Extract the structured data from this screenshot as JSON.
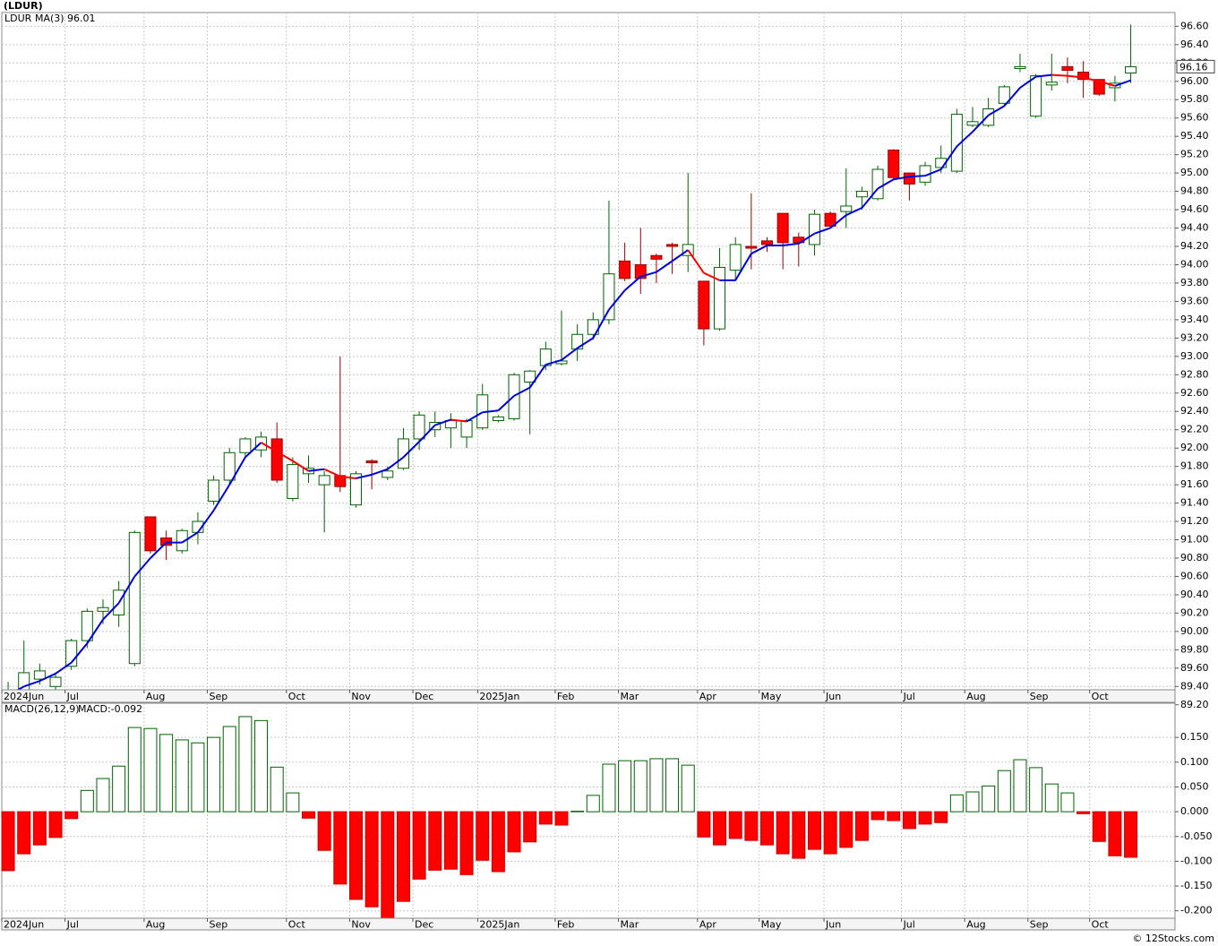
{
  "watermark": "© 12Stocks.com",
  "chart_data": [
    {
      "type": "candlestick",
      "title": "(LDUR)",
      "series": [
        {
          "name": "LDUR",
          "color": "#006400",
          "down_color": "#ff0000",
          "open": [
            89.2,
            89.25,
            89.48,
            89.4,
            89.62,
            89.9,
            90.22,
            90.18,
            89.65,
            91.25,
            91.02,
            90.88,
            91.08,
            91.42,
            91.65,
            91.95,
            91.98,
            92.1,
            91.45,
            91.72,
            91.6,
            91.7,
            91.38,
            91.86,
            91.68,
            91.78,
            92.1,
            92.2,
            92.22,
            92.12,
            92.22,
            92.3,
            92.32,
            92.72,
            92.9,
            92.92,
            93.08,
            93.24,
            93.4,
            94.04,
            94.0,
            94.1,
            94.22,
            94.1,
            93.82,
            93.3,
            93.94,
            94.2,
            94.26,
            94.56,
            94.3,
            94.22,
            94.56,
            94.58,
            94.74,
            94.72,
            95.25,
            95.0,
            94.9,
            95.06,
            95.02,
            95.52,
            95.52,
            95.76,
            96.14,
            95.62,
            95.96,
            96.16,
            96.1,
            96.02,
            95.93,
            96.09
          ],
          "high": [
            89.45,
            89.9,
            89.65,
            89.55,
            89.92,
            90.25,
            90.35,
            90.55,
            91.1,
            91.25,
            91.1,
            91.12,
            91.3,
            91.7,
            92.0,
            92.12,
            92.18,
            92.28,
            91.9,
            91.92,
            91.75,
            93.0,
            91.75,
            91.88,
            91.8,
            92.22,
            92.4,
            92.4,
            92.38,
            92.32,
            92.7,
            92.36,
            92.82,
            92.85,
            93.16,
            93.5,
            93.35,
            93.48,
            94.7,
            94.24,
            94.4,
            94.12,
            94.24,
            95.0,
            93.82,
            94.18,
            94.3,
            94.78,
            94.3,
            94.56,
            94.35,
            94.6,
            94.58,
            95.05,
            94.85,
            95.08,
            95.26,
            95.0,
            95.12,
            95.3,
            95.7,
            95.72,
            95.82,
            95.96,
            96.3,
            96.08,
            96.3,
            96.26,
            96.22,
            96.02,
            96.06,
            96.62
          ],
          "low": [
            89.15,
            89.22,
            89.42,
            89.3,
            89.58,
            89.82,
            90.08,
            90.05,
            89.62,
            90.85,
            90.78,
            90.85,
            90.95,
            91.38,
            91.6,
            91.9,
            91.9,
            91.62,
            91.42,
            91.62,
            91.08,
            91.52,
            91.35,
            91.55,
            91.65,
            91.76,
            91.98,
            92.12,
            92.0,
            92.0,
            92.2,
            92.28,
            92.3,
            92.15,
            92.85,
            92.9,
            92.95,
            93.18,
            93.35,
            93.82,
            93.68,
            93.8,
            93.9,
            93.92,
            93.12,
            93.28,
            93.82,
            93.95,
            94.14,
            93.95,
            93.98,
            94.1,
            94.4,
            94.4,
            94.6,
            94.7,
            94.92,
            94.7,
            94.86,
            95.0,
            95.0,
            95.5,
            95.5,
            95.74,
            96.1,
            95.6,
            95.9,
            95.98,
            95.82,
            95.84,
            95.78,
            95.98
          ],
          "close": [
            89.25,
            89.55,
            89.57,
            89.5,
            89.9,
            90.22,
            90.26,
            90.45,
            91.08,
            90.88,
            90.94,
            91.1,
            91.2,
            91.65,
            91.95,
            92.1,
            92.12,
            91.65,
            91.82,
            91.78,
            91.7,
            91.58,
            91.72,
            91.84,
            91.75,
            92.1,
            92.36,
            92.28,
            92.3,
            92.3,
            92.58,
            92.34,
            92.8,
            92.84,
            93.08,
            92.95,
            93.24,
            93.4,
            93.9,
            93.85,
            93.85,
            94.06,
            94.2,
            94.22,
            93.3,
            93.97,
            94.22,
            94.18,
            94.22,
            94.24,
            94.24,
            94.55,
            94.42,
            94.64,
            94.8,
            95.04,
            94.95,
            94.88,
            95.08,
            95.16,
            95.64,
            95.56,
            95.7,
            95.94,
            96.16,
            96.06,
            95.99,
            96.12,
            96.02,
            95.86,
            95.98,
            96.16
          ]
        },
        {
          "name": "MA(3)",
          "color": "#0000dd",
          "down_color": "#ff0000",
          "values": [
            89.3,
            89.4,
            89.46,
            89.54,
            89.66,
            89.87,
            90.13,
            90.31,
            90.6,
            90.8,
            90.97,
            90.97,
            91.08,
            91.32,
            91.6,
            91.9,
            92.06,
            91.96,
            91.86,
            91.75,
            91.77,
            91.69,
            91.67,
            91.71,
            91.77,
            91.9,
            92.07,
            92.25,
            92.31,
            92.29,
            92.39,
            92.41,
            92.57,
            92.66,
            92.91,
            92.96,
            93.09,
            93.2,
            93.51,
            93.72,
            93.87,
            93.92,
            94.04,
            94.16,
            93.91,
            93.83,
            93.83,
            94.12,
            94.21,
            94.21,
            94.23,
            94.34,
            94.4,
            94.54,
            94.62,
            94.83,
            94.93,
            94.96,
            94.97,
            95.04,
            95.29,
            95.45,
            95.63,
            95.73,
            95.93,
            96.05,
            96.07,
            96.06,
            96.04,
            96.0,
            95.95,
            96.01
          ]
        }
      ],
      "xlim": [
        -0.4,
        73.8
      ],
      "xticks": [
        {
          "value": -0.4,
          "label": "2024Jun"
        },
        {
          "value": 3.6,
          "label": "Jul"
        },
        {
          "value": 8.6,
          "label": "Aug"
        },
        {
          "value": 12.6,
          "label": "Sep"
        },
        {
          "value": 17.6,
          "label": "Oct"
        },
        {
          "value": 21.6,
          "label": "Nov"
        },
        {
          "value": 25.6,
          "label": "Dec"
        },
        {
          "value": 29.7,
          "label": "2025Jan"
        },
        {
          "value": 34.6,
          "label": "Feb"
        },
        {
          "value": 38.6,
          "label": "Mar"
        },
        {
          "value": 43.6,
          "label": "Apr"
        },
        {
          "value": 47.5,
          "label": "May"
        },
        {
          "value": 51.6,
          "label": "Jun"
        },
        {
          "value": 56.5,
          "label": "Jul"
        },
        {
          "value": 60.5,
          "label": "Aug"
        },
        {
          "value": 64.5,
          "label": "Sep"
        },
        {
          "value": 68.4,
          "label": "Oct"
        }
      ],
      "ylim": [
        89.1,
        96.75
      ],
      "yticks": [
        {
          "value": 89.2,
          "label": "89.20"
        },
        {
          "value": 89.4,
          "label": "89.40"
        },
        {
          "value": 89.6,
          "label": "89.60"
        },
        {
          "value": 89.8,
          "label": "89.80"
        },
        {
          "value": 90.0,
          "label": "90.00"
        },
        {
          "value": 90.2,
          "label": "90.20"
        },
        {
          "value": 90.4,
          "label": "90.40"
        },
        {
          "value": 90.6,
          "label": "90.60"
        },
        {
          "value": 90.8,
          "label": "90.80"
        },
        {
          "value": 91.0,
          "label": "91.00"
        },
        {
          "value": 91.2,
          "label": "91.20"
        },
        {
          "value": 91.4,
          "label": "91.40"
        },
        {
          "value": 91.6,
          "label": "91.60"
        },
        {
          "value": 91.8,
          "label": "91.80"
        },
        {
          "value": 92.0,
          "label": "92.00"
        },
        {
          "value": 92.2,
          "label": "92.20"
        },
        {
          "value": 92.4,
          "label": "92.40"
        },
        {
          "value": 92.6,
          "label": "92.60"
        },
        {
          "value": 92.8,
          "label": "92.80"
        },
        {
          "value": 93.0,
          "label": "93.00"
        },
        {
          "value": 93.2,
          "label": "93.20"
        },
        {
          "value": 93.4,
          "label": "93.40"
        },
        {
          "value": 93.6,
          "label": "93.60"
        },
        {
          "value": 93.8,
          "label": "93.80"
        },
        {
          "value": 94.0,
          "label": "94.00"
        },
        {
          "value": 94.2,
          "label": "94.20"
        },
        {
          "value": 94.4,
          "label": "94.40"
        },
        {
          "value": 94.6,
          "label": "94.60"
        },
        {
          "value": 94.8,
          "label": "94.80"
        },
        {
          "value": 95.0,
          "label": "95.00"
        },
        {
          "value": 95.2,
          "label": "95.20"
        },
        {
          "value": 95.4,
          "label": "95.40"
        },
        {
          "value": 95.6,
          "label": "95.60"
        },
        {
          "value": 95.8,
          "label": "95.80"
        },
        {
          "value": 96.0,
          "label": "96.00"
        },
        {
          "value": 96.2,
          "label": "96.20"
        },
        {
          "value": 96.4,
          "label": "96.40"
        },
        {
          "value": 96.6,
          "label": "96.60"
        }
      ],
      "grid": true
    },
    {
      "type": "bar",
      "title": "MACD(26,12,9)",
      "value_text": "MACD:-0.092",
      "series": [
        {
          "name": "MACD",
          "color": "#006400",
          "down_color": "#ff0000",
          "values": [
            -0.119,
            -0.085,
            -0.067,
            -0.052,
            -0.014,
            0.043,
            0.067,
            0.092,
            0.17,
            0.168,
            0.156,
            0.145,
            0.139,
            0.15,
            0.172,
            0.192,
            0.184,
            0.09,
            0.038,
            -0.013,
            -0.078,
            -0.146,
            -0.177,
            -0.192,
            -0.215,
            -0.181,
            -0.136,
            -0.118,
            -0.116,
            -0.127,
            -0.098,
            -0.121,
            -0.081,
            -0.061,
            -0.025,
            -0.027,
            0.001,
            0.033,
            0.096,
            0.103,
            0.103,
            0.107,
            0.107,
            0.094,
            -0.051,
            -0.067,
            -0.054,
            -0.058,
            -0.067,
            -0.085,
            -0.094,
            -0.076,
            -0.085,
            -0.072,
            -0.058,
            -0.016,
            -0.018,
            -0.034,
            -0.025,
            -0.022,
            0.034,
            0.04,
            0.052,
            0.083,
            0.105,
            0.089,
            0.056,
            0.038,
            -0.004,
            -0.06,
            -0.089,
            -0.092
          ]
        }
      ],
      "xlim": [
        -0.4,
        73.8
      ],
      "xticks": [
        {
          "value": -0.4,
          "label": "2024Jun"
        },
        {
          "value": 3.6,
          "label": "Jul"
        },
        {
          "value": 8.6,
          "label": "Aug"
        },
        {
          "value": 12.6,
          "label": "Sep"
        },
        {
          "value": 17.6,
          "label": "Oct"
        },
        {
          "value": 21.6,
          "label": "Nov"
        },
        {
          "value": 25.6,
          "label": "Dec"
        },
        {
          "value": 29.7,
          "label": "2025Jan"
        },
        {
          "value": 34.6,
          "label": "Feb"
        },
        {
          "value": 38.6,
          "label": "Mar"
        },
        {
          "value": 43.6,
          "label": "Apr"
        },
        {
          "value": 47.5,
          "label": "May"
        },
        {
          "value": 51.6,
          "label": "Jun"
        },
        {
          "value": 56.5,
          "label": "Jul"
        },
        {
          "value": 60.5,
          "label": "Aug"
        },
        {
          "value": 64.5,
          "label": "Sep"
        },
        {
          "value": 68.4,
          "label": "Oct"
        }
      ],
      "ylim": [
        -0.215,
        0.219
      ],
      "yticks": [
        {
          "value": -0.2,
          "label": "-0.200"
        },
        {
          "value": -0.15,
          "label": "-0.150"
        },
        {
          "value": -0.1,
          "label": "-0.100"
        },
        {
          "value": -0.05,
          "label": "-0.050"
        },
        {
          "value": 0,
          "label": "0.000"
        },
        {
          "value": 0.05,
          "label": "0.050"
        },
        {
          "value": 0.1,
          "label": "0.100"
        },
        {
          "value": 0.15,
          "label": "0.150"
        }
      ],
      "grid": true
    }
  ]
}
